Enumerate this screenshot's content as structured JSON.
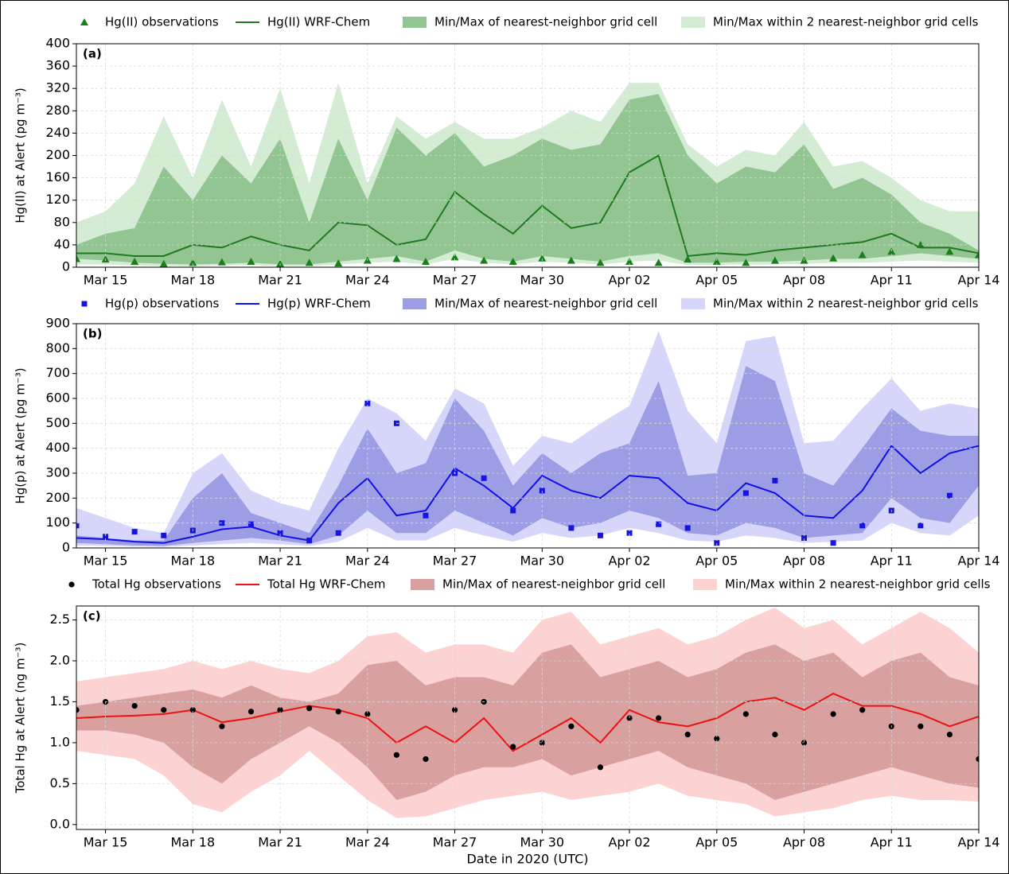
{
  "chart_data": [
    {
      "type": "line",
      "panel_label": "(a)",
      "ylabel": "Hg(II) at Alert (pg m⁻³)",
      "x": [
        "2020-03-14",
        "2020-03-15",
        "2020-03-16",
        "2020-03-17",
        "2020-03-18",
        "2020-03-19",
        "2020-03-20",
        "2020-03-21",
        "2020-03-22",
        "2020-03-23",
        "2020-03-24",
        "2020-03-25",
        "2020-03-26",
        "2020-03-27",
        "2020-03-28",
        "2020-03-29",
        "2020-03-30",
        "2020-03-31",
        "2020-04-01",
        "2020-04-02",
        "2020-04-03",
        "2020-04-04",
        "2020-04-05",
        "2020-04-06",
        "2020-04-07",
        "2020-04-08",
        "2020-04-09",
        "2020-04-10",
        "2020-04-11",
        "2020-04-12",
        "2020-04-13",
        "2020-04-14"
      ],
      "series": [
        {
          "name": "Hg(II) observations",
          "kind": "scatter",
          "marker": "triangle",
          "color": "#1a7f1a",
          "values": [
            15,
            14,
            10,
            6,
            8,
            9,
            10,
            6,
            8,
            7,
            12,
            15,
            10,
            18,
            12,
            10,
            16,
            12,
            8,
            10,
            8,
            14,
            10,
            8,
            12,
            12,
            16,
            22,
            28,
            40,
            28,
            22
          ]
        },
        {
          "name": "Hg(II) WRF-Chem",
          "kind": "line",
          "color": "#1f7a1f",
          "values": [
            25,
            25,
            20,
            20,
            40,
            35,
            55,
            40,
            30,
            80,
            75,
            40,
            50,
            135,
            95,
            60,
            110,
            70,
            80,
            170,
            200,
            20,
            25,
            22,
            30,
            35,
            40,
            45,
            60,
            35,
            35,
            25
          ]
        },
        {
          "name": "Min/Max of nearest-neighbor grid cell",
          "kind": "band",
          "color": "#93c593",
          "lower": [
            15,
            12,
            8,
            6,
            5,
            6,
            8,
            5,
            5,
            10,
            15,
            20,
            10,
            30,
            15,
            10,
            20,
            15,
            10,
            20,
            25,
            8,
            8,
            10,
            10,
            12,
            15,
            15,
            20,
            25,
            20,
            15
          ],
          "upper": [
            40,
            60,
            70,
            180,
            120,
            200,
            150,
            230,
            80,
            230,
            120,
            250,
            200,
            240,
            180,
            200,
            230,
            210,
            220,
            300,
            310,
            200,
            150,
            180,
            170,
            220,
            140,
            160,
            130,
            80,
            60,
            30
          ]
        },
        {
          "name": "Min/Max within 2 nearest-neighbor grid cells",
          "kind": "band",
          "color": "#d4ebd4",
          "lower": [
            5,
            5,
            3,
            2,
            2,
            3,
            4,
            2,
            2,
            5,
            8,
            10,
            5,
            15,
            8,
            5,
            10,
            8,
            5,
            10,
            12,
            4,
            4,
            5,
            5,
            6,
            8,
            8,
            10,
            12,
            10,
            8
          ],
          "upper": [
            80,
            100,
            150,
            270,
            160,
            300,
            180,
            320,
            150,
            330,
            150,
            270,
            230,
            260,
            230,
            230,
            250,
            280,
            260,
            330,
            330,
            220,
            180,
            210,
            200,
            260,
            180,
            190,
            160,
            120,
            100,
            100
          ]
        }
      ],
      "xlim": [
        "2020-03-14",
        "2020-04-14"
      ],
      "xticks": [
        {
          "value": "2020-03-15",
          "label": "Mar 15"
        },
        {
          "value": "2020-03-18",
          "label": "Mar 18"
        },
        {
          "value": "2020-03-21",
          "label": "Mar 21"
        },
        {
          "value": "2020-03-24",
          "label": "Mar 24"
        },
        {
          "value": "2020-03-27",
          "label": "Mar 27"
        },
        {
          "value": "2020-03-30",
          "label": "Mar 30"
        },
        {
          "value": "2020-04-02",
          "label": "Apr 02"
        },
        {
          "value": "2020-04-05",
          "label": "Apr 05"
        },
        {
          "value": "2020-04-08",
          "label": "Apr 08"
        },
        {
          "value": "2020-04-11",
          "label": "Apr 11"
        },
        {
          "value": "2020-04-14",
          "label": "Apr 14"
        }
      ],
      "ylim": [
        0,
        400
      ],
      "yticks": [
        0,
        40,
        80,
        120,
        160,
        200,
        240,
        280,
        320,
        360,
        400
      ],
      "grid": true
    },
    {
      "type": "line",
      "panel_label": "(b)",
      "ylabel": "Hg(p) at Alert (pg m⁻³)",
      "x": [
        "2020-03-14",
        "2020-03-15",
        "2020-03-16",
        "2020-03-17",
        "2020-03-18",
        "2020-03-19",
        "2020-03-20",
        "2020-03-21",
        "2020-03-22",
        "2020-03-23",
        "2020-03-24",
        "2020-03-25",
        "2020-03-26",
        "2020-03-27",
        "2020-03-28",
        "2020-03-29",
        "2020-03-30",
        "2020-03-31",
        "2020-04-01",
        "2020-04-02",
        "2020-04-03",
        "2020-04-04",
        "2020-04-05",
        "2020-04-06",
        "2020-04-07",
        "2020-04-08",
        "2020-04-09",
        "2020-04-10",
        "2020-04-11",
        "2020-04-12",
        "2020-04-13",
        "2020-04-14"
      ],
      "series": [
        {
          "name": "Hg(p) observations",
          "kind": "scatter",
          "marker": "square",
          "color": "#1515e0",
          "values": [
            90,
            45,
            65,
            50,
            70,
            100,
            95,
            60,
            30,
            60,
            580,
            500,
            130,
            300,
            280,
            150,
            230,
            80,
            50,
            60,
            95,
            80,
            20,
            220,
            270,
            40,
            20,
            90,
            150,
            90,
            210,
            null
          ]
        },
        {
          "name": "Hg(p) WRF-Chem",
          "kind": "line",
          "color": "#1010e8",
          "values": [
            40,
            35,
            25,
            20,
            45,
            75,
            85,
            50,
            30,
            180,
            280,
            130,
            150,
            320,
            250,
            160,
            290,
            230,
            200,
            290,
            280,
            180,
            150,
            260,
            220,
            130,
            120,
            230,
            410,
            300,
            380,
            410
          ]
        },
        {
          "name": "Min/Max of nearest-neighbor grid cell",
          "kind": "band",
          "color": "#9d9de6",
          "lower": [
            20,
            15,
            10,
            8,
            20,
            30,
            40,
            30,
            15,
            50,
            150,
            60,
            60,
            150,
            100,
            50,
            120,
            80,
            100,
            150,
            120,
            60,
            50,
            100,
            80,
            40,
            50,
            60,
            200,
            120,
            100,
            250
          ],
          "upper": [
            50,
            40,
            30,
            30,
            200,
            300,
            140,
            100,
            60,
            250,
            480,
            300,
            340,
            600,
            470,
            250,
            380,
            300,
            380,
            420,
            670,
            290,
            300,
            730,
            670,
            300,
            250,
            400,
            560,
            470,
            450,
            450
          ]
        },
        {
          "name": "Min/Max within 2 nearest-neighbor grid cells",
          "kind": "band",
          "color": "#d6d6fa",
          "lower": [
            10,
            8,
            5,
            4,
            10,
            15,
            20,
            15,
            8,
            25,
            80,
            30,
            30,
            80,
            50,
            25,
            60,
            40,
            50,
            80,
            60,
            30,
            25,
            50,
            40,
            20,
            25,
            30,
            100,
            60,
            50,
            130
          ],
          "upper": [
            160,
            120,
            80,
            60,
            300,
            380,
            230,
            180,
            150,
            400,
            600,
            540,
            430,
            640,
            580,
            330,
            450,
            420,
            500,
            570,
            870,
            550,
            420,
            830,
            850,
            420,
            430,
            560,
            680,
            550,
            580,
            560
          ]
        }
      ],
      "xlim": [
        "2020-03-14",
        "2020-04-14"
      ],
      "xticks": [
        {
          "value": "2020-03-15",
          "label": "Mar 15"
        },
        {
          "value": "2020-03-18",
          "label": "Mar 18"
        },
        {
          "value": "2020-03-21",
          "label": "Mar 21"
        },
        {
          "value": "2020-03-24",
          "label": "Mar 24"
        },
        {
          "value": "2020-03-27",
          "label": "Mar 27"
        },
        {
          "value": "2020-03-30",
          "label": "Mar 30"
        },
        {
          "value": "2020-04-02",
          "label": "Apr 02"
        },
        {
          "value": "2020-04-05",
          "label": "Apr 05"
        },
        {
          "value": "2020-04-08",
          "label": "Apr 08"
        },
        {
          "value": "2020-04-11",
          "label": "Apr 11"
        },
        {
          "value": "2020-04-14",
          "label": "Apr 14"
        }
      ],
      "ylim": [
        0,
        900
      ],
      "yticks": [
        0,
        100,
        200,
        300,
        400,
        500,
        600,
        700,
        800,
        900
      ],
      "grid": true
    },
    {
      "type": "line",
      "panel_label": "(c)",
      "ylabel": "Total Hg at Alert (ng m⁻³)",
      "xlabel": "Date in 2020 (UTC)",
      "x": [
        "2020-03-14",
        "2020-03-15",
        "2020-03-16",
        "2020-03-17",
        "2020-03-18",
        "2020-03-19",
        "2020-03-20",
        "2020-03-21",
        "2020-03-22",
        "2020-03-23",
        "2020-03-24",
        "2020-03-25",
        "2020-03-26",
        "2020-03-27",
        "2020-03-28",
        "2020-03-29",
        "2020-03-30",
        "2020-03-31",
        "2020-04-01",
        "2020-04-02",
        "2020-04-03",
        "2020-04-04",
        "2020-04-05",
        "2020-04-06",
        "2020-04-07",
        "2020-04-08",
        "2020-04-09",
        "2020-04-10",
        "2020-04-11",
        "2020-04-12",
        "2020-04-13",
        "2020-04-14"
      ],
      "series": [
        {
          "name": "Total Hg observations",
          "kind": "scatter",
          "marker": "circle",
          "color": "#000000",
          "values": [
            1.4,
            1.5,
            1.45,
            1.4,
            1.4,
            1.2,
            1.38,
            1.4,
            1.42,
            1.38,
            1.35,
            0.85,
            0.8,
            1.4,
            1.5,
            0.95,
            1.0,
            1.2,
            0.7,
            1.3,
            1.3,
            1.1,
            1.05,
            1.35,
            1.1,
            1.0,
            1.35,
            1.4,
            1.2,
            1.2,
            1.1,
            0.8
          ]
        },
        {
          "name": "Total Hg WRF-Chem",
          "kind": "line",
          "color": "#ee1111",
          "values": [
            1.3,
            1.32,
            1.33,
            1.35,
            1.4,
            1.25,
            1.3,
            1.38,
            1.45,
            1.4,
            1.3,
            1.0,
            1.2,
            1.0,
            1.3,
            0.9,
            1.1,
            1.3,
            1.0,
            1.4,
            1.25,
            1.2,
            1.3,
            1.5,
            1.55,
            1.4,
            1.6,
            1.45,
            1.45,
            1.35,
            1.2,
            1.32
          ]
        },
        {
          "name": "Min/Max of nearest-neighbor grid cell",
          "kind": "band",
          "color": "#d9a0a0",
          "lower": [
            1.15,
            1.15,
            1.1,
            1.0,
            0.7,
            0.5,
            0.8,
            1.0,
            1.2,
            1.0,
            0.7,
            0.3,
            0.4,
            0.6,
            0.7,
            0.7,
            0.8,
            0.6,
            0.7,
            0.8,
            0.9,
            0.7,
            0.6,
            0.5,
            0.3,
            0.4,
            0.5,
            0.6,
            0.7,
            0.6,
            0.5,
            0.45
          ],
          "upper": [
            1.45,
            1.5,
            1.55,
            1.6,
            1.65,
            1.55,
            1.7,
            1.55,
            1.5,
            1.6,
            1.95,
            2.0,
            1.7,
            1.8,
            1.8,
            1.7,
            2.1,
            2.2,
            1.8,
            1.9,
            2.0,
            1.8,
            1.9,
            2.1,
            2.2,
            2.0,
            2.1,
            1.8,
            2.0,
            2.1,
            1.8,
            1.7
          ]
        },
        {
          "name": "Min/Max within 2 nearest-neighbor grid cells",
          "kind": "band",
          "color": "#fcd2d2",
          "lower": [
            0.9,
            0.85,
            0.8,
            0.6,
            0.25,
            0.15,
            0.4,
            0.6,
            0.9,
            0.6,
            0.3,
            0.08,
            0.1,
            0.2,
            0.3,
            0.35,
            0.4,
            0.3,
            0.35,
            0.4,
            0.5,
            0.35,
            0.3,
            0.25,
            0.1,
            0.15,
            0.2,
            0.3,
            0.35,
            0.3,
            0.3,
            0.28
          ],
          "upper": [
            1.75,
            1.8,
            1.85,
            1.9,
            2.0,
            1.9,
            2.0,
            1.9,
            1.85,
            2.0,
            2.3,
            2.35,
            2.1,
            2.2,
            2.2,
            2.1,
            2.5,
            2.6,
            2.2,
            2.3,
            2.4,
            2.2,
            2.3,
            2.5,
            2.65,
            2.4,
            2.5,
            2.2,
            2.4,
            2.6,
            2.4,
            2.1
          ]
        }
      ],
      "xlim": [
        "2020-03-14",
        "2020-04-14"
      ],
      "xticks": [
        {
          "value": "2020-03-15",
          "label": "Mar 15"
        },
        {
          "value": "2020-03-18",
          "label": "Mar 18"
        },
        {
          "value": "2020-03-21",
          "label": "Mar 21"
        },
        {
          "value": "2020-03-24",
          "label": "Mar 24"
        },
        {
          "value": "2020-03-27",
          "label": "Mar 27"
        },
        {
          "value": "2020-03-30",
          "label": "Mar 30"
        },
        {
          "value": "2020-04-02",
          "label": "Apr 02"
        },
        {
          "value": "2020-04-05",
          "label": "Apr 05"
        },
        {
          "value": "2020-04-08",
          "label": "Apr 08"
        },
        {
          "value": "2020-04-11",
          "label": "Apr 11"
        },
        {
          "value": "2020-04-14",
          "label": "Apr 14"
        }
      ],
      "ylim": [
        -0.06,
        2.67
      ],
      "yticks": [
        {
          "value": 0,
          "label": "0.0"
        },
        0.5,
        {
          "value": 1,
          "label": "1.0"
        },
        1.5,
        {
          "value": 2,
          "label": "2.0"
        },
        2.5
      ],
      "grid": true
    }
  ]
}
